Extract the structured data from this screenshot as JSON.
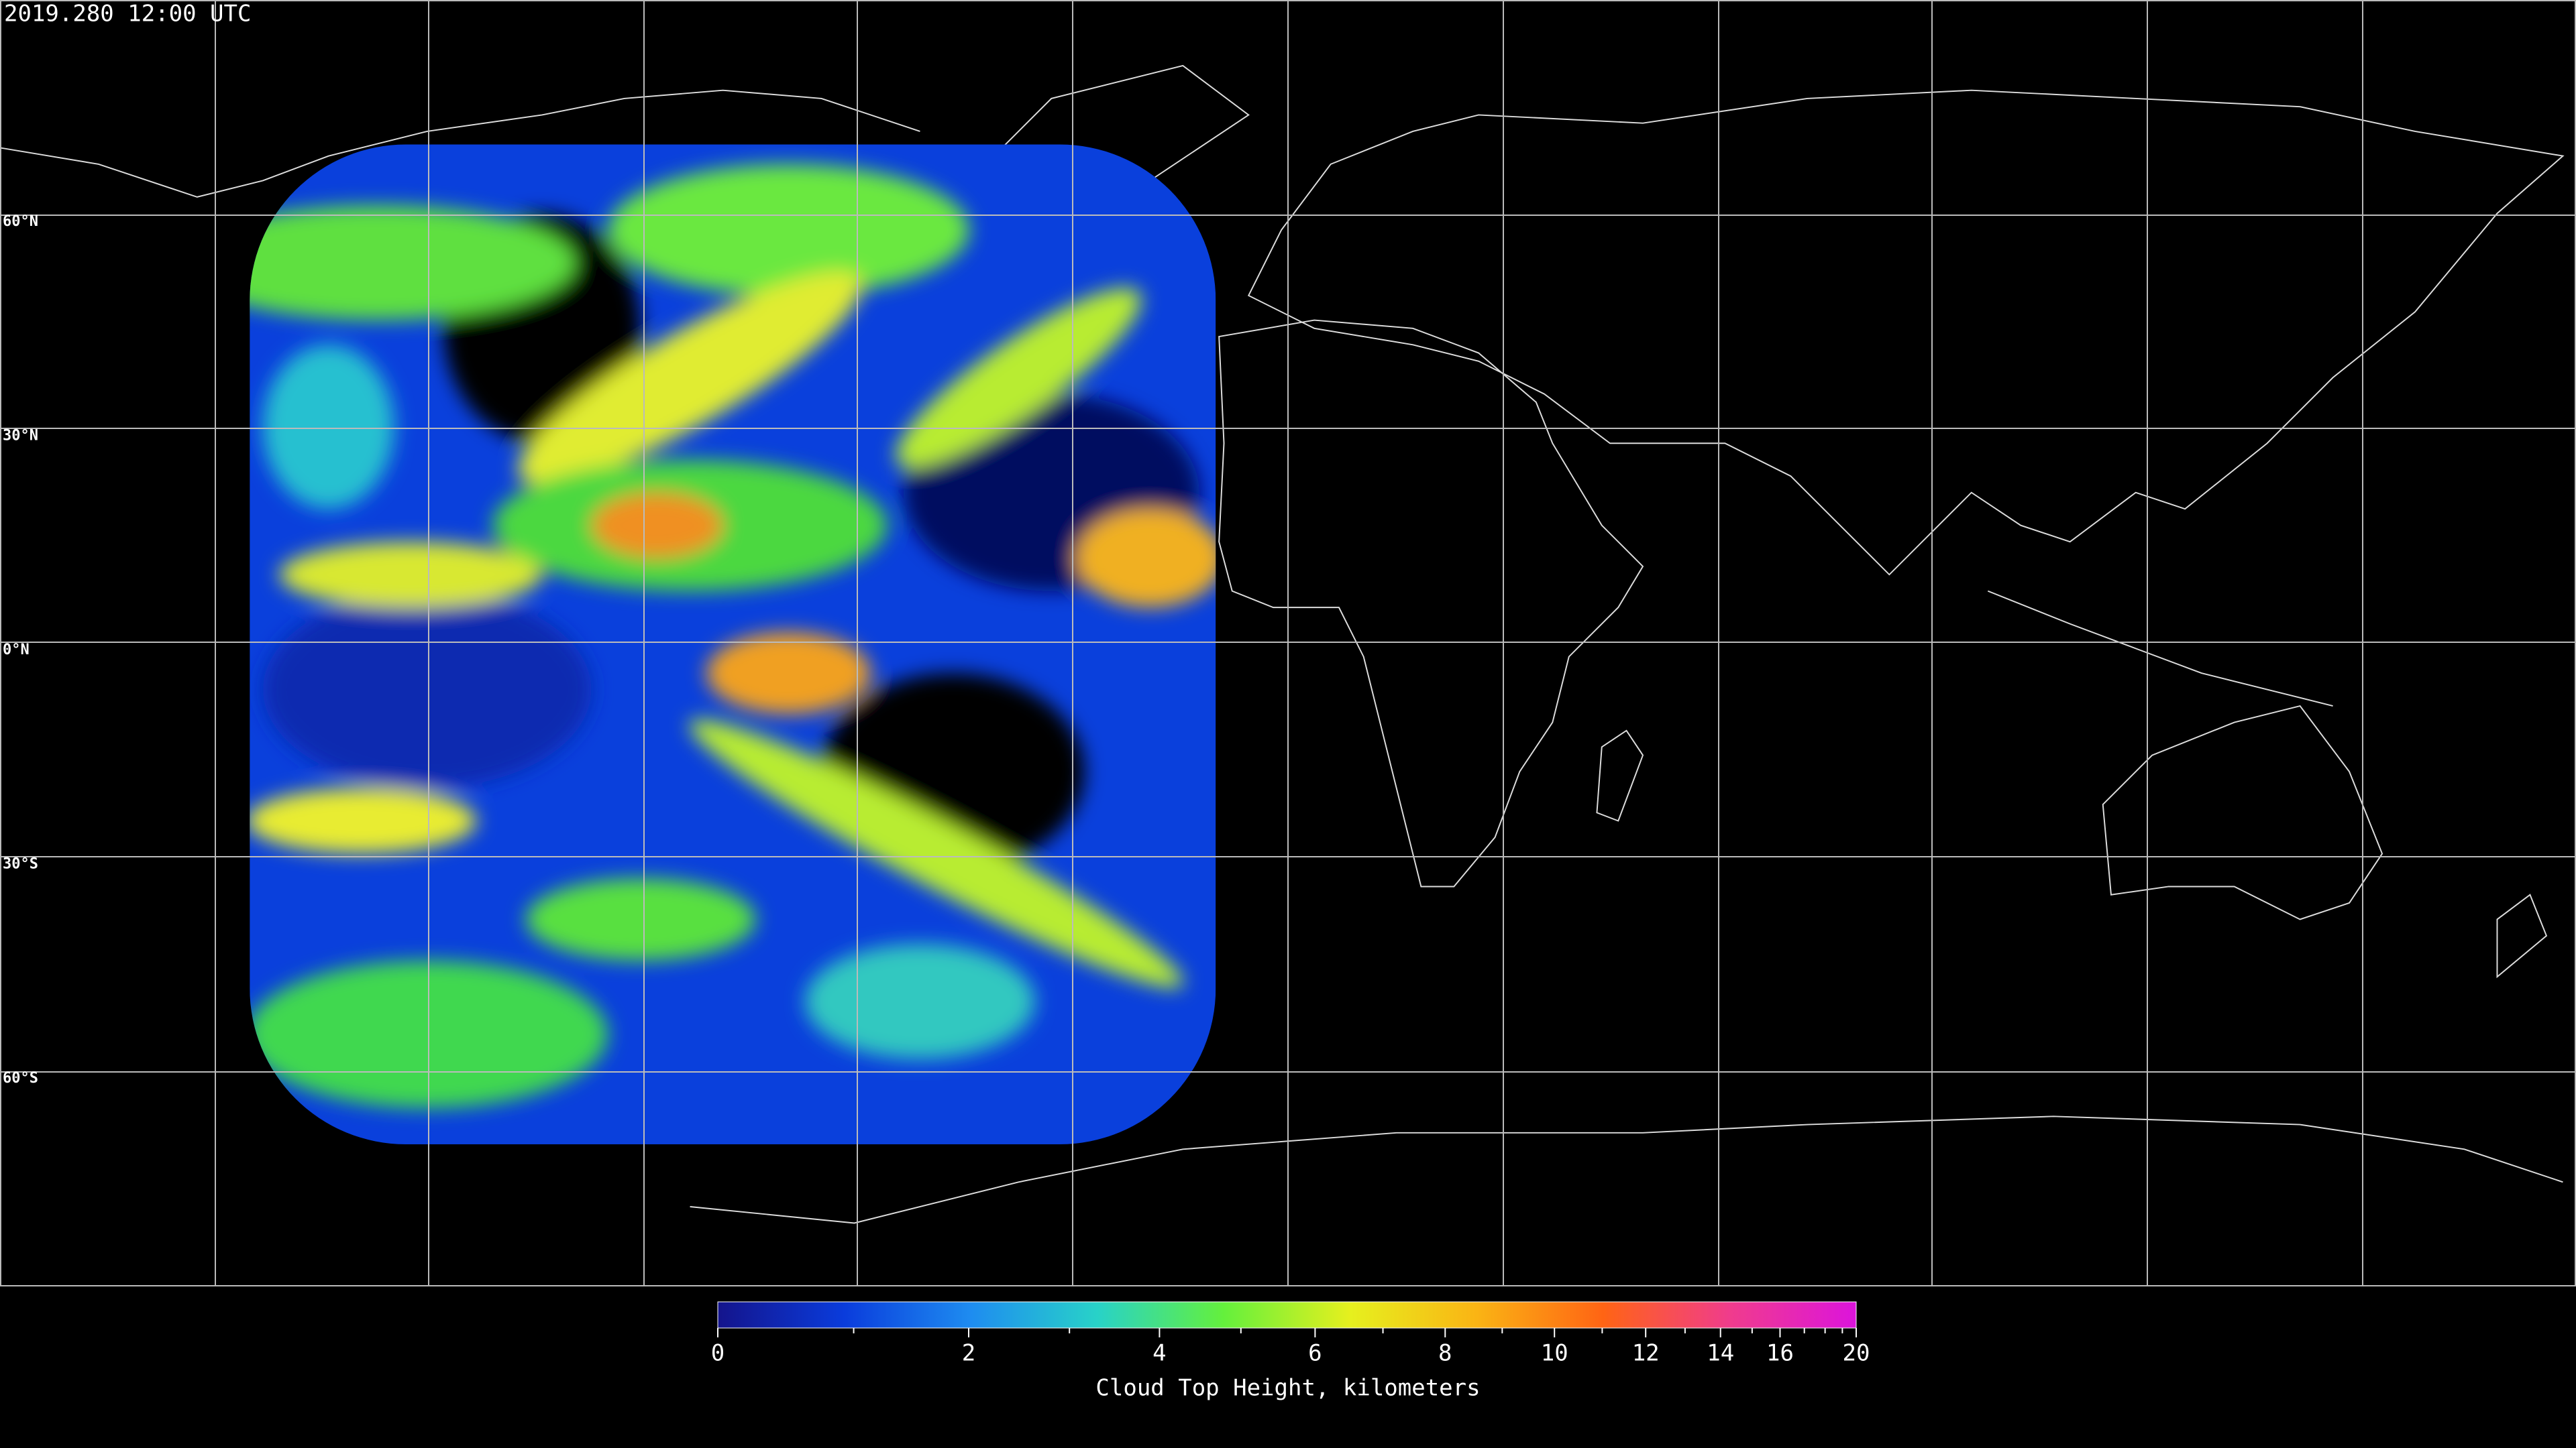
{
  "header": {
    "timestamp": "2019.280 12:00 UTC"
  },
  "map": {
    "latitude_labels": [
      {
        "value": 60,
        "label": "60°N"
      },
      {
        "value": 30,
        "label": "30°N"
      },
      {
        "value": 0,
        "label": "0°N"
      },
      {
        "value": -30,
        "label": "30°S"
      },
      {
        "value": -60,
        "label": "60°S"
      }
    ]
  },
  "colorbar": {
    "title": "Cloud Top Height, kilometers",
    "lim": [
      0,
      20
    ],
    "ticks": [
      0,
      2,
      4,
      6,
      8,
      10,
      12,
      14,
      16,
      20
    ],
    "minor_ticks": [
      1,
      3,
      5,
      7,
      9,
      11,
      13,
      15,
      17,
      18,
      19
    ],
    "colors": [
      "#14148c",
      "#0a3cdc",
      "#1e8cf0",
      "#28d2c8",
      "#64f03c",
      "#e6f01e",
      "#fab414",
      "#ff6414",
      "#f03c8c",
      "#dc14dc"
    ]
  }
}
